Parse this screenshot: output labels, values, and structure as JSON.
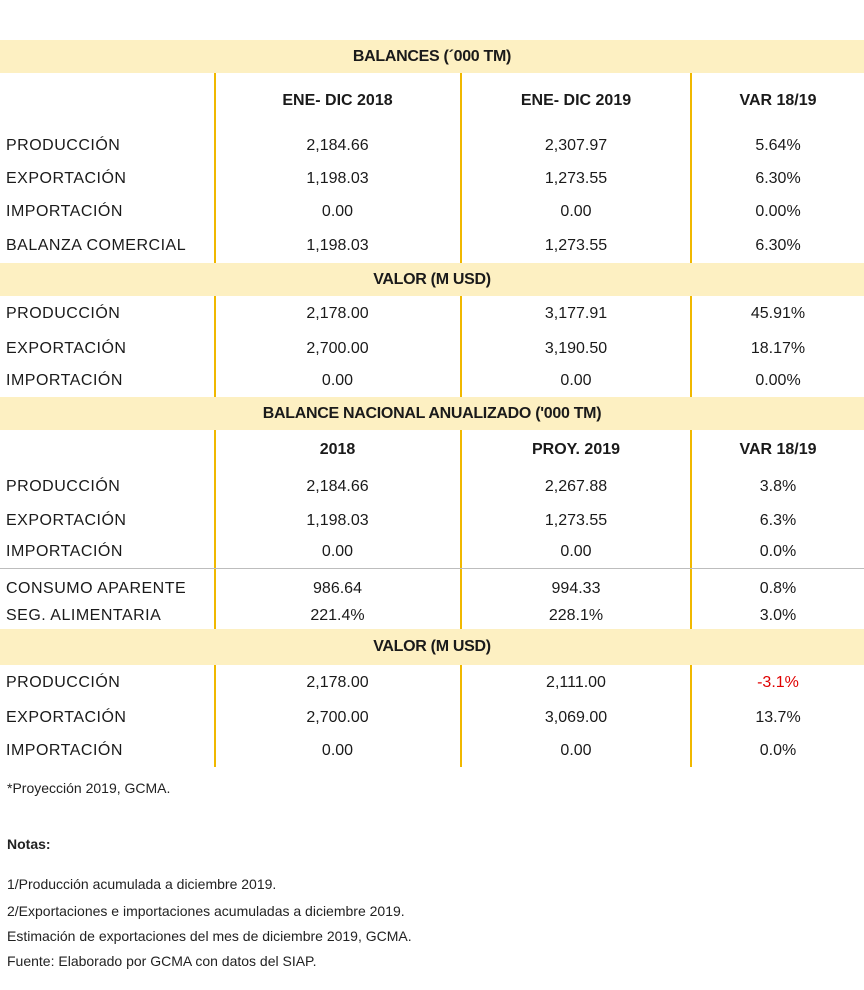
{
  "section1": {
    "title": "BALANCES (´000 TM)",
    "headers": [
      "",
      "ENE- DIC 2018",
      "ENE- DIC 2019",
      "VAR 18/19"
    ],
    "rows": [
      {
        "label": "PRODUCCIÓN",
        "c1": "2,184.66",
        "c2": "2,307.97",
        "c3": "5.64%"
      },
      {
        "label": "EXPORTACIÓN",
        "c1": "1,198.03",
        "c2": "1,273.55",
        "c3": "6.30%"
      },
      {
        "label": "IMPORTACIÓN",
        "c1": "0.00",
        "c2": "0.00",
        "c3": "0.00%"
      },
      {
        "label": "BALANZA COMERCIAL",
        "c1": "1,198.03",
        "c2": "1,273.55",
        "c3": "6.30%"
      }
    ]
  },
  "section2": {
    "title": "VALOR (M USD)",
    "rows": [
      {
        "label": "PRODUCCIÓN",
        "c1": "2,178.00",
        "c2": "3,177.91",
        "c3": "45.91%"
      },
      {
        "label": "EXPORTACIÓN",
        "c1": "2,700.00",
        "c2": "3,190.50",
        "c3": "18.17%"
      },
      {
        "label": "IMPORTACIÓN",
        "c1": "0.00",
        "c2": "0.00",
        "c3": "0.00%"
      }
    ]
  },
  "section3": {
    "title": "BALANCE NACIONAL ANUALIZADO ('000 TM)",
    "headers": [
      "",
      "2018",
      "PROY. 2019",
      "VAR 18/19"
    ],
    "rows": [
      {
        "label": "PRODUCCIÓN",
        "c1": "2,184.66",
        "c2": "2,267.88",
        "c3": "3.8%"
      },
      {
        "label": "EXPORTACIÓN",
        "c1": "1,198.03",
        "c2": "1,273.55",
        "c3": "6.3%"
      },
      {
        "label": "IMPORTACIÓN",
        "c1": "0.00",
        "c2": "0.00",
        "c3": "0.0%"
      },
      {
        "label": "CONSUMO APARENTE",
        "c1": "986.64",
        "c2": "994.33",
        "c3": "0.8%"
      },
      {
        "label": "SEG. ALIMENTARIA",
        "c1": "221.4%",
        "c2": "228.1%",
        "c3": "3.0%"
      }
    ]
  },
  "section4": {
    "title": "VALOR (M USD)",
    "rows": [
      {
        "label": "PRODUCCIÓN",
        "c1": "2,178.00",
        "c2": "2,111.00",
        "c3": "-3.1%"
      },
      {
        "label": "EXPORTACIÓN",
        "c1": "2,700.00",
        "c2": "3,069.00",
        "c3": "13.7%"
      },
      {
        "label": "IMPORTACIÓN",
        "c1": "0.00",
        "c2": "0.00",
        "c3": "0.0%"
      }
    ]
  },
  "footnote": "*Proyección 2019, GCMA.",
  "notes": {
    "heading": "Notas:",
    "lines": [
      "1/Producción acumulada a diciembre 2019.",
      "2/Exportaciones e importaciones acumuladas a diciembre 2019.",
      "Estimación de exportaciones del mes de  diciembre 2019, GCMA.",
      "Fuente: Elaborado por GCMA con datos del SIAP."
    ]
  },
  "colors": {
    "band_background": "#fdf0c2",
    "column_divider": "#f0b800",
    "negative_value": "#e00000"
  }
}
